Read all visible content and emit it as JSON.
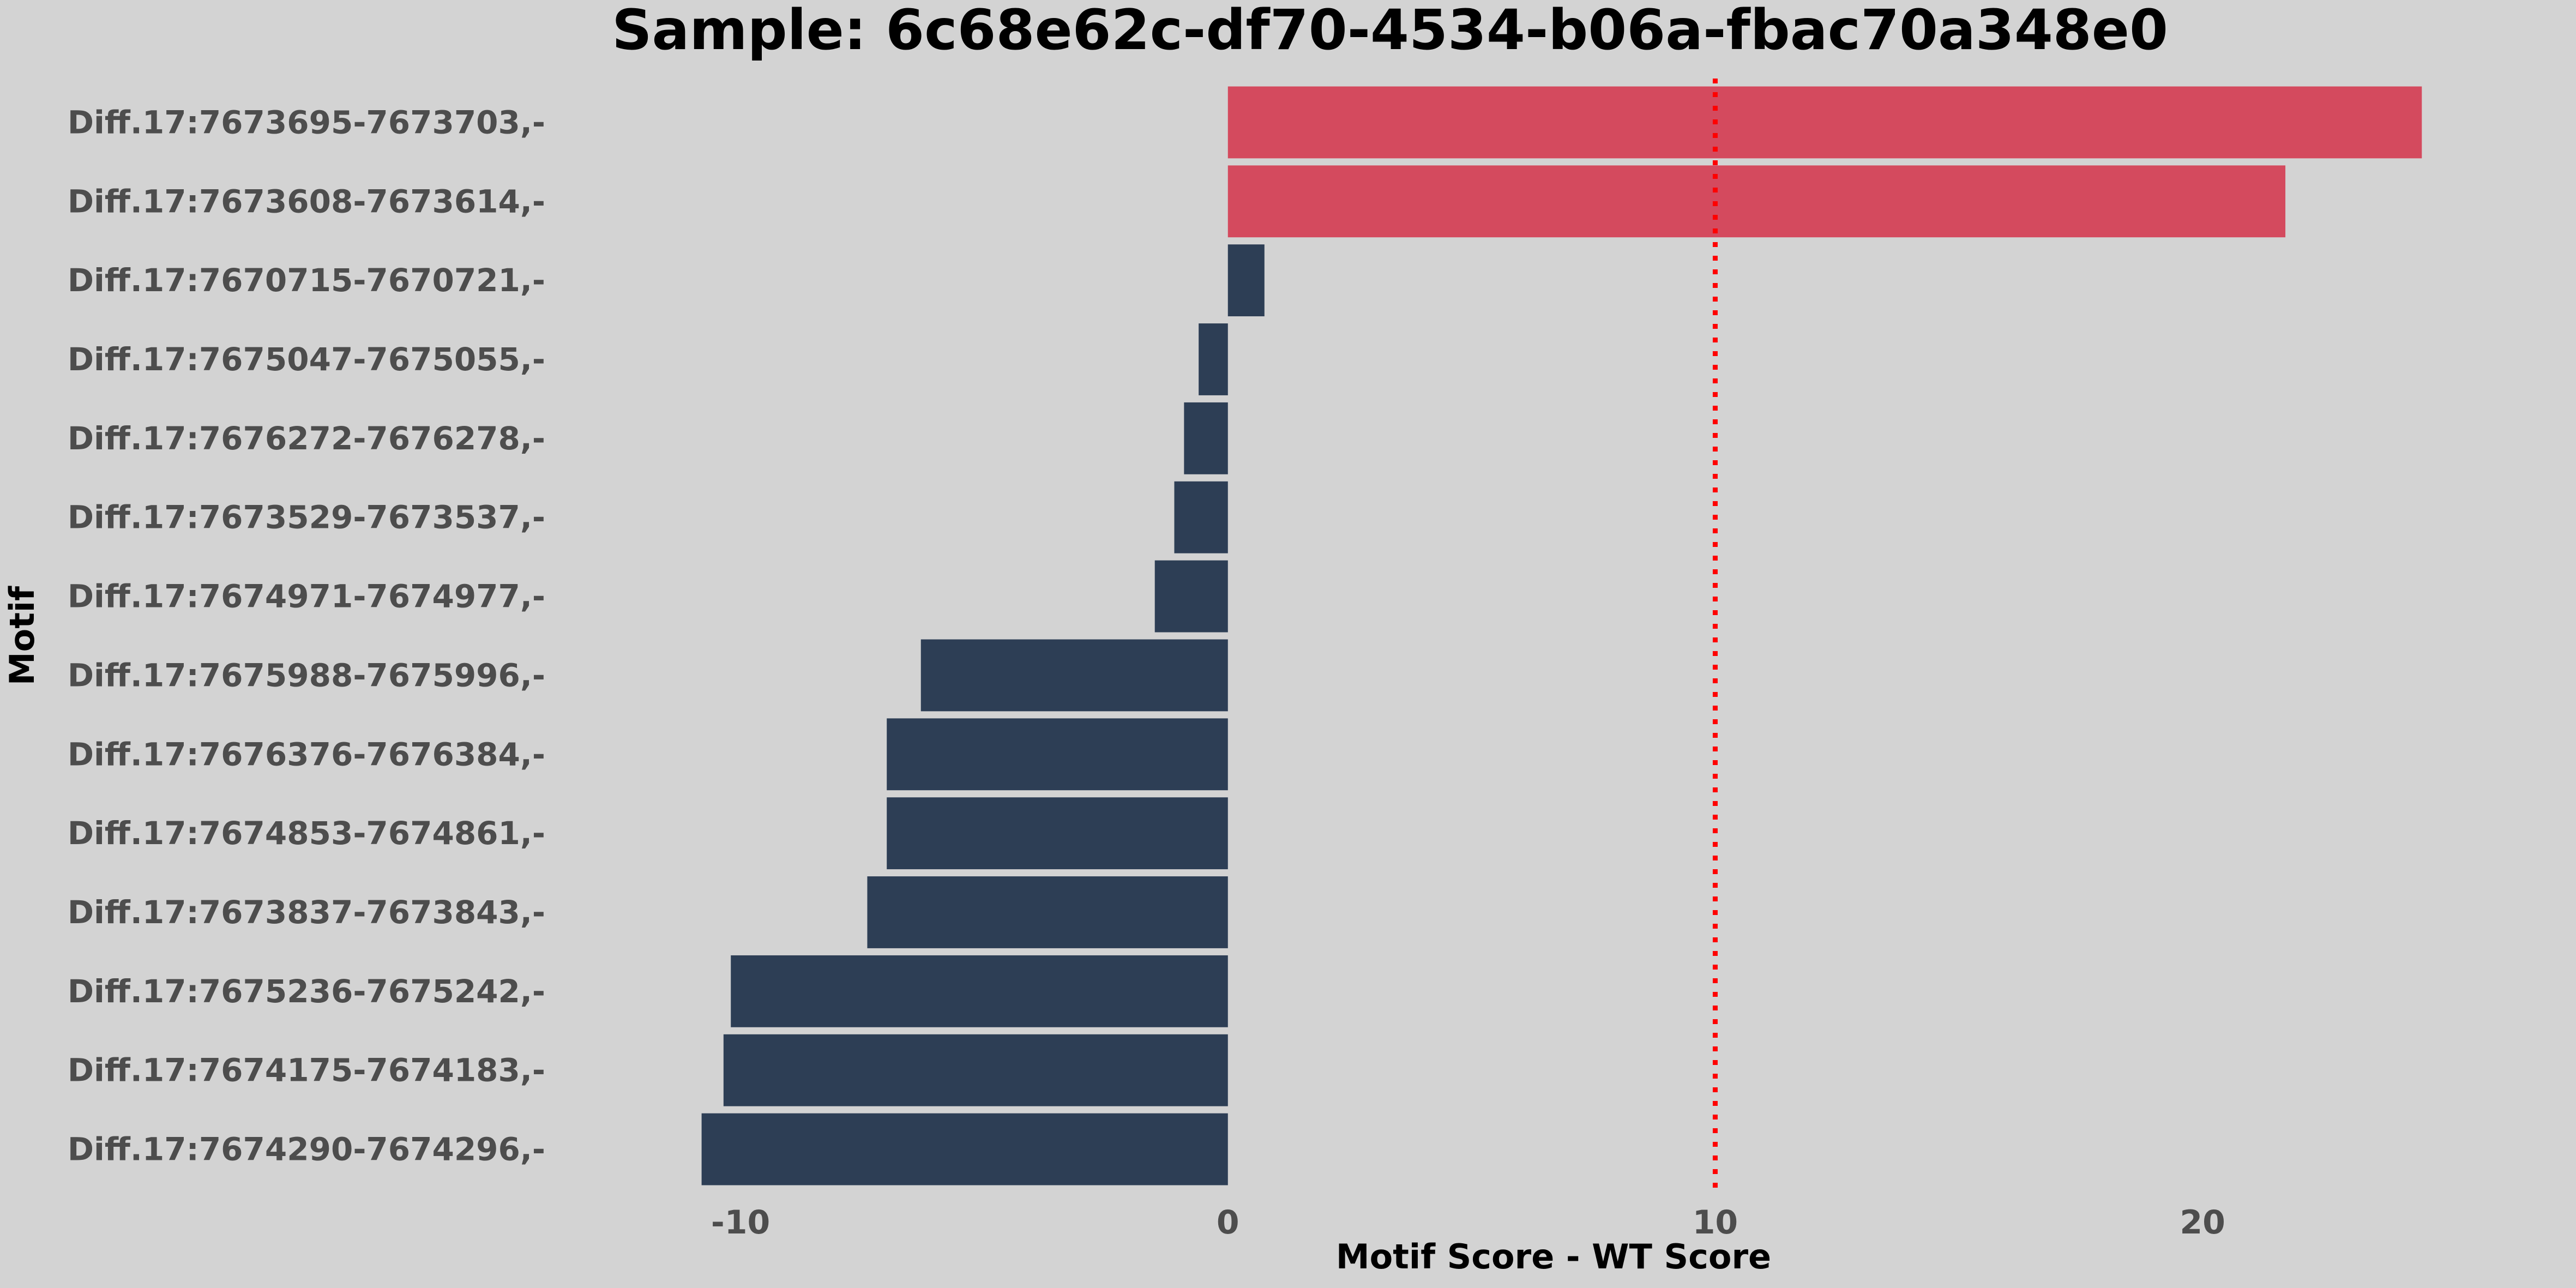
{
  "chart_data": {
    "type": "bar",
    "orientation": "horizontal",
    "title": "Sample: 6c68e62c-df70-4534-b06a-fbac70a348e0",
    "xlabel": "Motif Score - WT Score",
    "ylabel": "Motif",
    "xlim": [
      -13,
      26.5
    ],
    "xticks": [
      -10,
      0,
      10,
      20
    ],
    "xtick_labels": [
      "-10",
      "0",
      "10",
      "20"
    ],
    "threshold": 10,
    "threshold_color": "#ff0000",
    "positive_color": "#d44a5e",
    "negative_color": "#2d3e55",
    "background_color": "#d3d3d3",
    "grid": false,
    "categories": [
      "Diff.17:7673695-7673703,-",
      "Diff.17:7673608-7673614,-",
      "Diff.17:7670715-7670721,-",
      "Diff.17:7675047-7675055,-",
      "Diff.17:7676272-7676278,-",
      "Diff.17:7673529-7673537,-",
      "Diff.17:7674971-7674977,-",
      "Diff.17:7675988-7675996,-",
      "Diff.17:7676376-7676384,-",
      "Diff.17:7674853-7674861,-",
      "Diff.17:7673837-7673843,-",
      "Diff.17:7675236-7675242,-",
      "Diff.17:7674175-7674183,-",
      "Diff.17:7674290-7674296,-"
    ],
    "values": [
      24.5,
      21.7,
      0.75,
      -0.6,
      -0.9,
      -1.1,
      -1.5,
      -6.3,
      -7.0,
      -7.0,
      -7.4,
      -10.2,
      -10.35,
      -10.8
    ]
  }
}
